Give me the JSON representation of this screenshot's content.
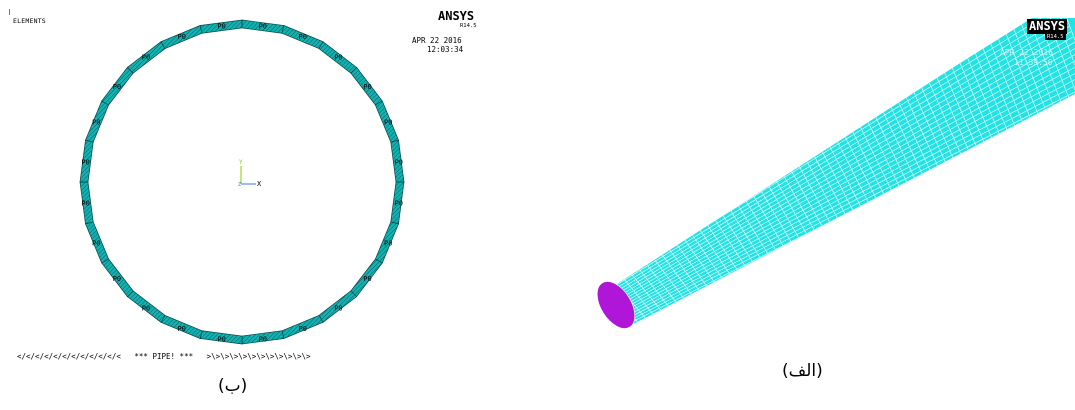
{
  "panel_b": {
    "label": "ELEMENTS",
    "brand": "ANSYS",
    "version": "R14.5",
    "date": "APR 22 2016",
    "time": "12:03:34",
    "element_label": "P0",
    "axis_y": "Y",
    "axis_z": "Z",
    "axis_x": "X",
    "footer": "</</</</</</</</</</</<   *** PIPE! ***   >\\>\\>\\>\\>\\>\\>\\>\\>\\>\\>\\>",
    "caption": "(ب)",
    "colors": {
      "element": "#12b2b2",
      "element_stripe": "#0a5f5f"
    }
  },
  "panel_a": {
    "brand": "ANSYS",
    "version": "R14.5",
    "date_ghost": "APR 22 2016",
    "time_ghost": "11:59:50",
    "caption": "(الف)",
    "colors": {
      "pipe": "#22e3e3",
      "mesh": "#ffffff",
      "end_face": "#b016d8"
    }
  }
}
